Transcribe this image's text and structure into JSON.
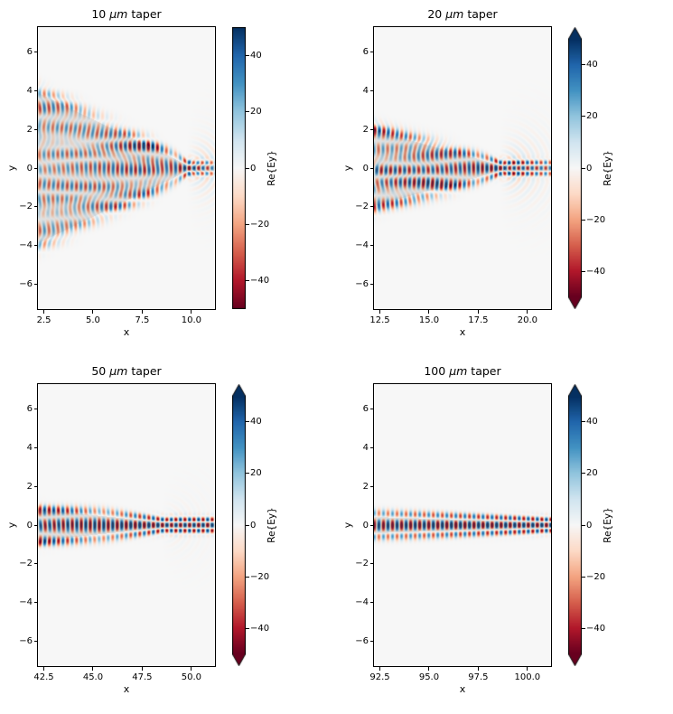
{
  "figure": {
    "background": "#ffffff",
    "plot_background": "#f7f7f7",
    "colormap_name": "RdBu",
    "colormap": [
      "#67001f",
      "#b2182b",
      "#d6604d",
      "#f4a582",
      "#fddbc7",
      "#f7f7f7",
      "#d1e5f0",
      "#92c5de",
      "#4393c3",
      "#2166ac",
      "#053061"
    ],
    "structure_overlay_color": "#808080"
  },
  "chart_data": [
    {
      "type": "heatmap",
      "title": "10 μm taper",
      "xlabel": "x",
      "ylabel": "y",
      "xlim": [
        2.2,
        11.2
      ],
      "ylim": [
        -7.3,
        7.3
      ],
      "xticks": [
        2.5,
        5.0,
        7.5,
        10.0
      ],
      "xtick_labels": [
        "2.5",
        "5.0",
        "7.5",
        "10.0"
      ],
      "yticks": [
        -6,
        -4,
        -2,
        0,
        2,
        4,
        6
      ],
      "ytick_labels": [
        "−6",
        "−4",
        "−2",
        "0",
        "2",
        "4",
        "6"
      ],
      "colorbar": {
        "label": "Re{Ey}",
        "vmin": -50,
        "vmax": 50,
        "ticks": [
          -40,
          -20,
          0,
          20,
          40
        ],
        "tick_labels": [
          "−40",
          "−20",
          "0",
          "20",
          "40"
        ],
        "extend": false
      },
      "field": {
        "x_left": 2.2,
        "w_left": 3.9,
        "x_apex": 9.8,
        "w_end": 0.16,
        "k": 13.66,
        "amp": 22,
        "w_ref": 3.9,
        "loss": 2.5,
        "radiate": 0.5,
        "evan": 0.5
      }
    },
    {
      "type": "heatmap",
      "title": "20 μm taper",
      "xlabel": "x",
      "ylabel": "y",
      "xlim": [
        12.2,
        21.2
      ],
      "ylim": [
        -7.3,
        7.3
      ],
      "xticks": [
        12.5,
        15.0,
        17.5,
        20.0
      ],
      "xtick_labels": [
        "12.5",
        "15.0",
        "17.5",
        "20.0"
      ],
      "yticks": [
        -6,
        -4,
        -2,
        0,
        2,
        4,
        6
      ],
      "ytick_labels": [
        "−6",
        "−4",
        "−2",
        "0",
        "2",
        "4",
        "6"
      ],
      "colorbar": {
        "label": "Re{Ey}",
        "vmin": -50,
        "vmax": 50,
        "ticks": [
          -40,
          -20,
          0,
          20,
          40
        ],
        "tick_labels": [
          "−40",
          "−20",
          "0",
          "20",
          "40"
        ],
        "extend": true
      },
      "field": {
        "x_left": 12.2,
        "w_left": 1.95,
        "x_apex": 18.6,
        "w_end": 0.16,
        "k": 13.66,
        "amp": 24,
        "w_ref": 3.9,
        "loss": 4.5,
        "radiate": 0.5,
        "evan": 0.45
      }
    },
    {
      "type": "heatmap",
      "title": "50 μm taper",
      "xlabel": "x",
      "ylabel": "y",
      "xlim": [
        42.2,
        51.2
      ],
      "ylim": [
        -7.3,
        7.3
      ],
      "xticks": [
        42.5,
        45.0,
        47.5,
        50.0
      ],
      "xtick_labels": [
        "42.5",
        "45.0",
        "47.5",
        "50.0"
      ],
      "yticks": [
        -6,
        -4,
        -2,
        0,
        2,
        4,
        6
      ],
      "ytick_labels": [
        "−6",
        "−4",
        "−2",
        "0",
        "2",
        "4",
        "6"
      ],
      "colorbar": {
        "label": "Re{Ey}",
        "vmin": -50,
        "vmax": 50,
        "ticks": [
          -40,
          -20,
          0,
          20,
          40
        ],
        "tick_labels": [
          "−40",
          "−20",
          "0",
          "20",
          "40"
        ],
        "extend": true
      },
      "field": {
        "x_left": 42.2,
        "w_left": 0.8,
        "x_apex": 48.5,
        "w_end": 0.16,
        "k": 13.66,
        "amp": 26,
        "w_ref": 3.9,
        "loss": 0,
        "radiate": 0.15,
        "evan": 0.35
      }
    },
    {
      "type": "heatmap",
      "title": "100 μm taper",
      "xlabel": "x",
      "ylabel": "y",
      "xlim": [
        92.2,
        101.2
      ],
      "ylim": [
        -7.3,
        7.3
      ],
      "xticks": [
        92.5,
        95.0,
        97.5,
        100.0
      ],
      "xtick_labels": [
        "92.5",
        "95.0",
        "97.5",
        "100.0"
      ],
      "yticks": [
        -6,
        -4,
        -2,
        0,
        2,
        4,
        6
      ],
      "ytick_labels": [
        "−6",
        "−4",
        "−2",
        "0",
        "2",
        "4",
        "6"
      ],
      "colorbar": {
        "label": "Re{Ey}",
        "vmin": -50,
        "vmax": 50,
        "ticks": [
          -40,
          -20,
          0,
          20,
          40
        ],
        "tick_labels": [
          "−40",
          "−20",
          "0",
          "20",
          "40"
        ],
        "extend": true
      },
      "field": {
        "x_left": 92.2,
        "w_left": 0.42,
        "x_apex": 100.9,
        "w_end": 0.16,
        "k": 13.66,
        "amp": 26,
        "w_ref": 3.9,
        "loss": 0,
        "radiate": 0,
        "evan": 0.32
      }
    }
  ]
}
